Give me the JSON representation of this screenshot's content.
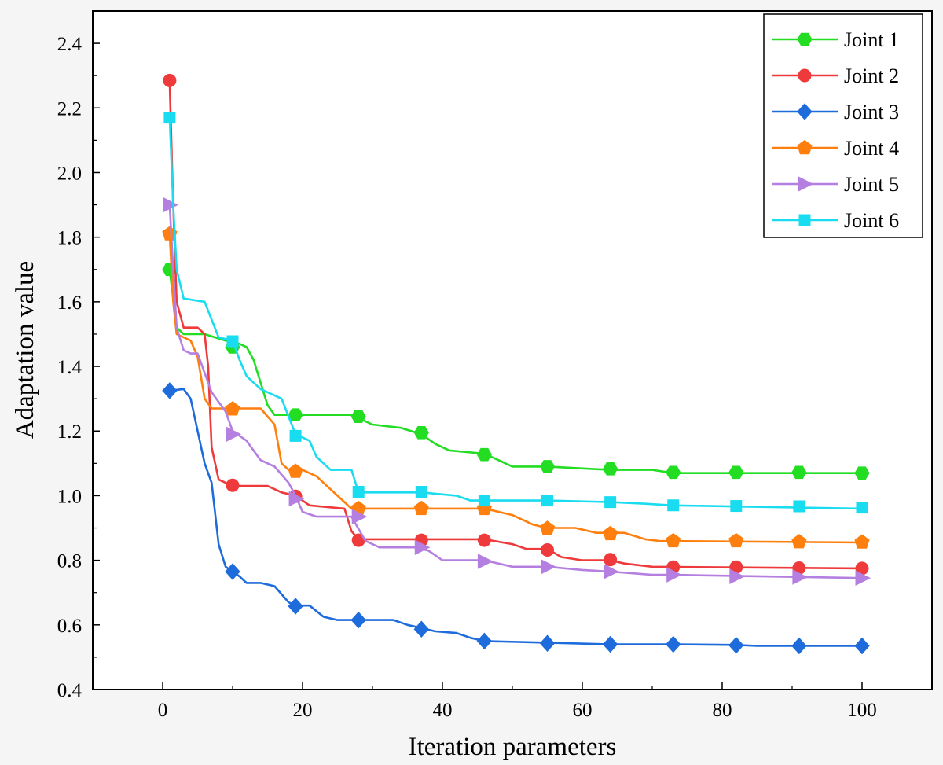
{
  "chart_data": {
    "type": "line",
    "title": "",
    "xlabel": "Iteration parameters",
    "ylabel": "Adaptation value",
    "xlim": [
      -10,
      110
    ],
    "ylim": [
      0.4,
      2.5
    ],
    "x_ticks": [
      0,
      20,
      40,
      60,
      80,
      100
    ],
    "y_ticks": [
      0.4,
      0.6,
      0.8,
      1.0,
      1.2,
      1.4,
      1.6,
      1.8,
      2.0,
      2.2,
      2.4
    ],
    "x_tick_labels": [
      "0",
      "20",
      "40",
      "60",
      "80",
      "100"
    ],
    "y_tick_labels": [
      "0.4",
      "0.6",
      "0.8",
      "1.0",
      "1.2",
      "1.4",
      "1.6",
      "1.8",
      "2.0",
      "2.2",
      "2.4"
    ],
    "grid": false,
    "legend_position": "top-right",
    "series": [
      {
        "name": "Joint 1",
        "color": "#22dd22",
        "marker": "hexagon",
        "line": [
          [
            1,
            1.7
          ],
          [
            2,
            1.52
          ],
          [
            3,
            1.5
          ],
          [
            6,
            1.5
          ],
          [
            9,
            1.48
          ],
          [
            11,
            1.47
          ],
          [
            12,
            1.46
          ],
          [
            13,
            1.42
          ],
          [
            14,
            1.35
          ],
          [
            15,
            1.28
          ],
          [
            16,
            1.25
          ],
          [
            20,
            1.25
          ],
          [
            27,
            1.25
          ],
          [
            30,
            1.22
          ],
          [
            34,
            1.21
          ],
          [
            37,
            1.19
          ],
          [
            39,
            1.16
          ],
          [
            41,
            1.14
          ],
          [
            46,
            1.13
          ],
          [
            48,
            1.11
          ],
          [
            50,
            1.09
          ],
          [
            55,
            1.09
          ],
          [
            64,
            1.08
          ],
          [
            70,
            1.08
          ],
          [
            73,
            1.07
          ],
          [
            100,
            1.07
          ]
        ],
        "markers": [
          [
            1,
            1.7
          ],
          [
            10,
            1.46
          ],
          [
            19,
            1.25
          ],
          [
            28,
            1.245
          ],
          [
            37,
            1.195
          ],
          [
            46,
            1.127
          ],
          [
            55,
            1.09
          ],
          [
            64,
            1.083
          ],
          [
            73,
            1.072
          ],
          [
            82,
            1.072
          ],
          [
            91,
            1.072
          ],
          [
            100,
            1.07
          ]
        ]
      },
      {
        "name": "Joint 2",
        "color": "#ee3a3a",
        "marker": "circle",
        "line": [
          [
            1,
            2.28
          ],
          [
            1.5,
            1.9
          ],
          [
            2,
            1.6
          ],
          [
            3,
            1.52
          ],
          [
            5,
            1.52
          ],
          [
            6,
            1.5
          ],
          [
            6.5,
            1.4
          ],
          [
            7,
            1.15
          ],
          [
            8,
            1.05
          ],
          [
            10,
            1.03
          ],
          [
            15,
            1.03
          ],
          [
            17,
            1.01
          ],
          [
            19,
            1.0
          ],
          [
            21,
            0.97
          ],
          [
            26,
            0.96
          ],
          [
            27,
            0.89
          ],
          [
            28,
            0.865
          ],
          [
            46,
            0.865
          ],
          [
            50,
            0.85
          ],
          [
            52,
            0.835
          ],
          [
            55,
            0.835
          ],
          [
            57,
            0.81
          ],
          [
            60,
            0.8
          ],
          [
            64,
            0.8
          ],
          [
            66,
            0.79
          ],
          [
            70,
            0.78
          ],
          [
            100,
            0.775
          ]
        ],
        "markers": [
          [
            1,
            2.285
          ],
          [
            10,
            1.032
          ],
          [
            19,
            0.998
          ],
          [
            28,
            0.862
          ],
          [
            37,
            0.862
          ],
          [
            46,
            0.862
          ],
          [
            55,
            0.832
          ],
          [
            64,
            0.802
          ],
          [
            73,
            0.779
          ],
          [
            82,
            0.779
          ],
          [
            91,
            0.776
          ],
          [
            100,
            0.775
          ]
        ]
      },
      {
        "name": "Joint 3",
        "color": "#1e6bdc",
        "marker": "diamond",
        "line": [
          [
            1,
            1.325
          ],
          [
            3,
            1.33
          ],
          [
            4,
            1.3
          ],
          [
            5,
            1.2
          ],
          [
            6,
            1.1
          ],
          [
            7,
            1.04
          ],
          [
            8,
            0.85
          ],
          [
            9,
            0.78
          ],
          [
            10,
            0.765
          ],
          [
            11,
            0.75
          ],
          [
            12,
            0.73
          ],
          [
            14,
            0.73
          ],
          [
            16,
            0.72
          ],
          [
            18,
            0.67
          ],
          [
            19,
            0.66
          ],
          [
            21,
            0.66
          ],
          [
            23,
            0.625
          ],
          [
            25,
            0.615
          ],
          [
            33,
            0.615
          ],
          [
            35,
            0.6
          ],
          [
            37,
            0.59
          ],
          [
            39,
            0.58
          ],
          [
            42,
            0.575
          ],
          [
            44,
            0.56
          ],
          [
            46,
            0.55
          ],
          [
            55,
            0.545
          ],
          [
            64,
            0.54
          ],
          [
            73,
            0.54
          ],
          [
            82,
            0.538
          ],
          [
            85,
            0.535
          ],
          [
            100,
            0.535
          ]
        ],
        "markers": [
          [
            1,
            1.325
          ],
          [
            10,
            0.765
          ],
          [
            19,
            0.658
          ],
          [
            28,
            0.615
          ],
          [
            37,
            0.587
          ],
          [
            46,
            0.55
          ],
          [
            55,
            0.543
          ],
          [
            64,
            0.54
          ],
          [
            73,
            0.54
          ],
          [
            82,
            0.537
          ],
          [
            91,
            0.535
          ],
          [
            100,
            0.535
          ]
        ]
      },
      {
        "name": "Joint 4",
        "color": "#ff7f0e",
        "marker": "pentagon",
        "line": [
          [
            1,
            1.81
          ],
          [
            1.5,
            1.6
          ],
          [
            2,
            1.5
          ],
          [
            4,
            1.48
          ],
          [
            5,
            1.43
          ],
          [
            6,
            1.3
          ],
          [
            7,
            1.27
          ],
          [
            10,
            1.27
          ],
          [
            14,
            1.27
          ],
          [
            16,
            1.22
          ],
          [
            17,
            1.1
          ],
          [
            18,
            1.08
          ],
          [
            20,
            1.08
          ],
          [
            22,
            1.06
          ],
          [
            25,
            1.0
          ],
          [
            27,
            0.96
          ],
          [
            45,
            0.96
          ],
          [
            47,
            0.955
          ],
          [
            50,
            0.94
          ],
          [
            53,
            0.91
          ],
          [
            55,
            0.9
          ],
          [
            59,
            0.9
          ],
          [
            62,
            0.885
          ],
          [
            66,
            0.885
          ],
          [
            69,
            0.865
          ],
          [
            71,
            0.86
          ],
          [
            100,
            0.855
          ]
        ],
        "markers": [
          [
            1,
            1.81
          ],
          [
            10,
            1.268
          ],
          [
            19,
            1.075
          ],
          [
            28,
            0.96
          ],
          [
            37,
            0.96
          ],
          [
            46,
            0.96
          ],
          [
            55,
            0.898
          ],
          [
            64,
            0.882
          ],
          [
            73,
            0.86
          ],
          [
            82,
            0.86
          ],
          [
            91,
            0.857
          ],
          [
            100,
            0.856
          ]
        ]
      },
      {
        "name": "Joint 5",
        "color": "#b47fe0",
        "marker": "triangle-right",
        "line": [
          [
            1,
            1.9
          ],
          [
            1.5,
            1.7
          ],
          [
            2,
            1.52
          ],
          [
            3,
            1.45
          ],
          [
            4,
            1.44
          ],
          [
            5,
            1.44
          ],
          [
            7,
            1.32
          ],
          [
            9,
            1.26
          ],
          [
            10,
            1.2
          ],
          [
            12,
            1.17
          ],
          [
            14,
            1.11
          ],
          [
            16,
            1.09
          ],
          [
            18,
            1.04
          ],
          [
            19,
            1.0
          ],
          [
            20,
            0.95
          ],
          [
            22,
            0.935
          ],
          [
            27,
            0.935
          ],
          [
            29,
            0.86
          ],
          [
            31,
            0.84
          ],
          [
            36,
            0.84
          ],
          [
            38,
            0.83
          ],
          [
            40,
            0.8
          ],
          [
            46,
            0.8
          ],
          [
            50,
            0.78
          ],
          [
            55,
            0.78
          ],
          [
            60,
            0.77
          ],
          [
            64,
            0.765
          ],
          [
            70,
            0.755
          ],
          [
            73,
            0.755
          ],
          [
            100,
            0.745
          ]
        ],
        "markers": [
          [
            1,
            1.9
          ],
          [
            10,
            1.19
          ],
          [
            19,
            0.99
          ],
          [
            28,
            0.935
          ],
          [
            37,
            0.84
          ],
          [
            46,
            0.797
          ],
          [
            55,
            0.78
          ],
          [
            64,
            0.765
          ],
          [
            73,
            0.755
          ],
          [
            82,
            0.75
          ],
          [
            91,
            0.748
          ],
          [
            100,
            0.745
          ]
        ]
      },
      {
        "name": "Joint 6",
        "color": "#19dcf0",
        "marker": "square",
        "line": [
          [
            1,
            2.17
          ],
          [
            1.5,
            1.9
          ],
          [
            2,
            1.7
          ],
          [
            3,
            1.61
          ],
          [
            6,
            1.6
          ],
          [
            8,
            1.49
          ],
          [
            10,
            1.48
          ],
          [
            11,
            1.42
          ],
          [
            12,
            1.37
          ],
          [
            14,
            1.33
          ],
          [
            17,
            1.3
          ],
          [
            19,
            1.19
          ],
          [
            21,
            1.17
          ],
          [
            22,
            1.12
          ],
          [
            24,
            1.08
          ],
          [
            27,
            1.08
          ],
          [
            28,
            1.01
          ],
          [
            37,
            1.01
          ],
          [
            42,
            1.0
          ],
          [
            44,
            0.985
          ],
          [
            46,
            0.985
          ],
          [
            55,
            0.985
          ],
          [
            64,
            0.98
          ],
          [
            69,
            0.975
          ],
          [
            73,
            0.97
          ],
          [
            100,
            0.96
          ]
        ],
        "markers": [
          [
            1,
            2.17
          ],
          [
            10,
            1.478
          ],
          [
            19,
            1.185
          ],
          [
            28,
            1.012
          ],
          [
            37,
            1.012
          ],
          [
            46,
            0.985
          ],
          [
            55,
            0.985
          ],
          [
            64,
            0.98
          ],
          [
            73,
            0.97
          ],
          [
            82,
            0.968
          ],
          [
            91,
            0.967
          ],
          [
            100,
            0.963
          ]
        ]
      }
    ]
  }
}
